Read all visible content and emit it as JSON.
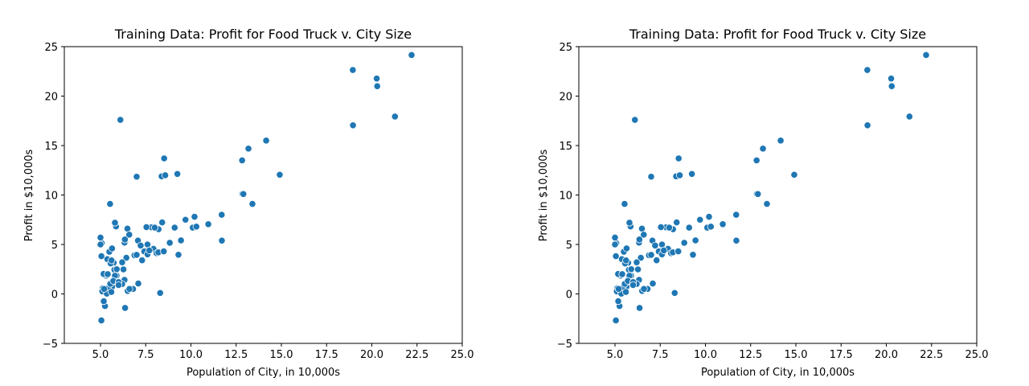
{
  "figure": {
    "marker_color": "#1f77b4",
    "marker_edge_color": "#ffffff",
    "background": "#ffffff"
  },
  "chart_data": [
    {
      "type": "scatter",
      "title": "Training Data: Profit for Food Truck v. City Size",
      "xlabel": "Population of City, in 10,000s",
      "ylabel": "Profit in $10,000s",
      "xlim": [
        3,
        25
      ],
      "ylim": [
        -5,
        25
      ],
      "xticks": [
        "5.0",
        "7.5",
        "10.0",
        "12.5",
        "15.0",
        "17.5",
        "20.0",
        "22.5",
        "25.0"
      ],
      "yticks": [
        "−5",
        "0",
        "5",
        "10",
        "15",
        "20",
        "25"
      ],
      "grid": false,
      "points": [
        [
          6.1,
          17.6
        ],
        [
          5.53,
          9.1
        ],
        [
          8.52,
          13.7
        ],
        [
          7.0,
          11.85
        ],
        [
          5.86,
          6.82
        ],
        [
          8.38,
          11.89
        ],
        [
          7.48,
          4.35
        ],
        [
          8.58,
          12.0
        ],
        [
          6.49,
          6.6
        ],
        [
          5.05,
          3.82
        ],
        [
          5.71,
          3.25
        ],
        [
          14.16,
          15.5
        ],
        [
          5.73,
          3.15
        ],
        [
          8.41,
          7.23
        ],
        [
          5.64,
          0.72
        ],
        [
          5.38,
          3.51
        ],
        [
          6.37,
          5.3
        ],
        [
          5.13,
          0.56
        ],
        [
          6.43,
          3.65
        ],
        [
          7.07,
          5.39
        ],
        [
          6.19,
          3.14
        ],
        [
          20.27,
          21.77
        ],
        [
          5.49,
          4.26
        ],
        [
          6.33,
          5.19
        ],
        [
          5.56,
          3.08
        ],
        [
          18.95,
          22.64
        ],
        [
          12.83,
          13.5
        ],
        [
          10.96,
          7.05
        ],
        [
          13.18,
          14.69
        ],
        [
          22.2,
          24.15
        ],
        [
          5.25,
          -1.22
        ],
        [
          6.59,
          5.99
        ],
        [
          9.25,
          12.13
        ],
        [
          5.89,
          1.85
        ],
        [
          8.21,
          6.54
        ],
        [
          7.93,
          4.56
        ],
        [
          8.1,
          4.12
        ],
        [
          5.61,
          3.39
        ],
        [
          12.84,
          10.12
        ],
        [
          6.35,
          5.5
        ],
        [
          5.41,
          0.56
        ],
        [
          6.88,
          3.91
        ],
        [
          11.71,
          5.39
        ],
        [
          5.77,
          2.44
        ],
        [
          7.82,
          6.73
        ],
        [
          7.09,
          1.05
        ],
        [
          5.07,
          5.13
        ],
        [
          5.8,
          1.84
        ],
        [
          11.7,
          8.0
        ],
        [
          5.54,
          1.02
        ],
        [
          7.54,
          6.75
        ],
        [
          5.31,
          1.84
        ],
        [
          7.42,
          4.29
        ],
        [
          7.6,
          5.0
        ],
        [
          6.33,
          1.42
        ],
        [
          6.36,
          -1.42
        ],
        [
          6.27,
          2.48
        ],
        [
          5.64,
          4.6
        ],
        [
          9.31,
          3.96
        ],
        [
          9.45,
          5.41
        ],
        [
          8.83,
          5.17
        ],
        [
          5.18,
          -0.74
        ],
        [
          21.28,
          17.93
        ],
        [
          14.91,
          12.05
        ],
        [
          18.96,
          17.05
        ],
        [
          7.22,
          4.89
        ],
        [
          5.3,
          1.99
        ],
        [
          5.05,
          -2.68
        ],
        [
          5.17,
          2.02
        ],
        [
          5.1,
          0.26
        ],
        [
          7.0,
          3.95
        ],
        [
          5.35,
          0.03
        ],
        [
          5.0,
          5.0
        ],
        [
          5.71,
          1.32
        ],
        [
          6.2,
          1.0
        ],
        [
          5.4,
          2.0
        ],
        [
          5.9,
          2.5
        ],
        [
          6.5,
          0.3
        ],
        [
          5.0,
          5.7
        ],
        [
          5.6,
          0.2
        ],
        [
          6.0,
          1.2
        ],
        [
          6.2,
          3.2
        ],
        [
          7.3,
          3.4
        ],
        [
          7.6,
          4.0
        ],
        [
          8.0,
          6.7
        ],
        [
          8.2,
          4.2
        ],
        [
          9.1,
          6.7
        ],
        [
          9.7,
          7.5
        ],
        [
          10.1,
          6.7
        ],
        [
          10.2,
          7.8
        ],
        [
          10.3,
          6.8
        ],
        [
          12.9,
          10.1
        ],
        [
          13.4,
          9.1
        ],
        [
          20.3,
          21.0
        ],
        [
          5.8,
          7.2
        ],
        [
          6.8,
          0.5
        ],
        [
          8.3,
          0.1
        ],
        [
          8.5,
          4.3
        ],
        [
          7.7,
          4.4
        ],
        [
          6.6,
          0.5
        ],
        [
          6.0,
          0.9
        ],
        [
          5.2,
          0.5
        ]
      ]
    },
    {
      "type": "scatter",
      "title": "Training Data: Profit for Food Truck v. City Size",
      "xlabel": "Population of City, in 10,000s",
      "ylabel": "Profit in $10,000s",
      "xlim": [
        3,
        25
      ],
      "ylim": [
        -5,
        25
      ],
      "xticks": [
        "5.0",
        "7.5",
        "10.0",
        "12.5",
        "15.0",
        "17.5",
        "20.0",
        "22.5",
        "25.0"
      ],
      "yticks": [
        "−5",
        "0",
        "5",
        "10",
        "15",
        "20",
        "25"
      ],
      "grid": false,
      "points": [
        [
          6.1,
          17.6
        ],
        [
          5.53,
          9.1
        ],
        [
          8.52,
          13.7
        ],
        [
          7.0,
          11.85
        ],
        [
          5.86,
          6.82
        ],
        [
          8.38,
          11.89
        ],
        [
          7.48,
          4.35
        ],
        [
          8.58,
          12.0
        ],
        [
          6.49,
          6.6
        ],
        [
          5.05,
          3.82
        ],
        [
          5.71,
          3.25
        ],
        [
          14.16,
          15.5
        ],
        [
          5.73,
          3.15
        ],
        [
          8.41,
          7.23
        ],
        [
          5.64,
          0.72
        ],
        [
          5.38,
          3.51
        ],
        [
          6.37,
          5.3
        ],
        [
          5.13,
          0.56
        ],
        [
          6.43,
          3.65
        ],
        [
          7.07,
          5.39
        ],
        [
          6.19,
          3.14
        ],
        [
          20.27,
          21.77
        ],
        [
          5.49,
          4.26
        ],
        [
          6.33,
          5.19
        ],
        [
          5.56,
          3.08
        ],
        [
          18.95,
          22.64
        ],
        [
          12.83,
          13.5
        ],
        [
          10.96,
          7.05
        ],
        [
          13.18,
          14.69
        ],
        [
          22.2,
          24.15
        ],
        [
          5.25,
          -1.22
        ],
        [
          6.59,
          5.99
        ],
        [
          9.25,
          12.13
        ],
        [
          5.89,
          1.85
        ],
        [
          8.21,
          6.54
        ],
        [
          7.93,
          4.56
        ],
        [
          8.1,
          4.12
        ],
        [
          5.61,
          3.39
        ],
        [
          12.84,
          10.12
        ],
        [
          6.35,
          5.5
        ],
        [
          5.41,
          0.56
        ],
        [
          6.88,
          3.91
        ],
        [
          11.71,
          5.39
        ],
        [
          5.77,
          2.44
        ],
        [
          7.82,
          6.73
        ],
        [
          7.09,
          1.05
        ],
        [
          5.07,
          5.13
        ],
        [
          5.8,
          1.84
        ],
        [
          11.7,
          8.0
        ],
        [
          5.54,
          1.02
        ],
        [
          7.54,
          6.75
        ],
        [
          5.31,
          1.84
        ],
        [
          7.42,
          4.29
        ],
        [
          7.6,
          5.0
        ],
        [
          6.33,
          1.42
        ],
        [
          6.36,
          -1.42
        ],
        [
          6.27,
          2.48
        ],
        [
          5.64,
          4.6
        ],
        [
          9.31,
          3.96
        ],
        [
          9.45,
          5.41
        ],
        [
          8.83,
          5.17
        ],
        [
          5.18,
          -0.74
        ],
        [
          21.28,
          17.93
        ],
        [
          14.91,
          12.05
        ],
        [
          18.96,
          17.05
        ],
        [
          7.22,
          4.89
        ],
        [
          5.3,
          1.99
        ],
        [
          5.05,
          -2.68
        ],
        [
          5.17,
          2.02
        ],
        [
          5.1,
          0.26
        ],
        [
          7.0,
          3.95
        ],
        [
          5.35,
          0.03
        ],
        [
          5.0,
          5.0
        ],
        [
          5.71,
          1.32
        ],
        [
          6.2,
          1.0
        ],
        [
          5.4,
          2.0
        ],
        [
          5.9,
          2.5
        ],
        [
          6.5,
          0.3
        ],
        [
          5.0,
          5.7
        ],
        [
          5.6,
          0.2
        ],
        [
          6.0,
          1.2
        ],
        [
          6.2,
          3.2
        ],
        [
          7.3,
          3.4
        ],
        [
          7.6,
          4.0
        ],
        [
          8.0,
          6.7
        ],
        [
          8.2,
          4.2
        ],
        [
          9.1,
          6.7
        ],
        [
          9.7,
          7.5
        ],
        [
          10.1,
          6.7
        ],
        [
          10.2,
          7.8
        ],
        [
          10.3,
          6.8
        ],
        [
          12.9,
          10.1
        ],
        [
          13.4,
          9.1
        ],
        [
          20.3,
          21.0
        ],
        [
          5.8,
          7.2
        ],
        [
          6.8,
          0.5
        ],
        [
          8.3,
          0.1
        ],
        [
          8.5,
          4.3
        ],
        [
          7.7,
          4.4
        ],
        [
          6.6,
          0.5
        ],
        [
          6.0,
          0.9
        ],
        [
          5.2,
          0.5
        ]
      ]
    }
  ]
}
